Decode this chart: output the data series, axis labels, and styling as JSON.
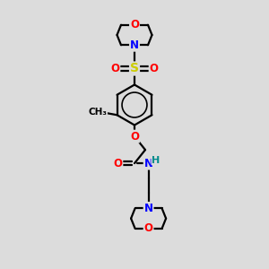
{
  "bg_color": "#dcdcdc",
  "atom_colors": {
    "C": "#000000",
    "N": "#0000ff",
    "O": "#ff0000",
    "S": "#cccc00",
    "H": "#008b8b"
  },
  "bond_color": "#000000",
  "bond_width": 1.6,
  "figsize": [
    3.0,
    3.0
  ],
  "dpi": 100
}
